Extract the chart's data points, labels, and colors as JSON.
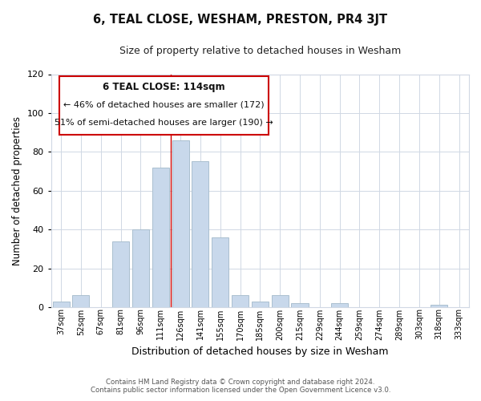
{
  "title": "6, TEAL CLOSE, WESHAM, PRESTON, PR4 3JT",
  "subtitle": "Size of property relative to detached houses in Wesham",
  "xlabel": "Distribution of detached houses by size in Wesham",
  "ylabel": "Number of detached properties",
  "bar_color": "#c8d8eb",
  "bar_edge_color": "#aabfcf",
  "categories": [
    "37sqm",
    "52sqm",
    "67sqm",
    "81sqm",
    "96sqm",
    "111sqm",
    "126sqm",
    "141sqm",
    "155sqm",
    "170sqm",
    "185sqm",
    "200sqm",
    "215sqm",
    "229sqm",
    "244sqm",
    "259sqm",
    "274sqm",
    "289sqm",
    "303sqm",
    "318sqm",
    "333sqm"
  ],
  "values": [
    3,
    6,
    0,
    34,
    40,
    72,
    86,
    75,
    36,
    6,
    3,
    6,
    2,
    0,
    2,
    0,
    0,
    0,
    0,
    1,
    0
  ],
  "ylim": [
    0,
    120
  ],
  "yticks": [
    0,
    20,
    40,
    60,
    80,
    100,
    120
  ],
  "vline_x": 5.5,
  "vline_color": "#cc0000",
  "annotation_title": "6 TEAL CLOSE: 114sqm",
  "annotation_line1": "← 46% of detached houses are smaller (172)",
  "annotation_line2": "51% of semi-detached houses are larger (190) →",
  "annotation_box_color": "#ffffff",
  "annotation_box_edge": "#cc0000",
  "footer_line1": "Contains HM Land Registry data © Crown copyright and database right 2024.",
  "footer_line2": "Contains public sector information licensed under the Open Government Licence v3.0.",
  "background_color": "#ffffff",
  "grid_color": "#d0d8e4"
}
